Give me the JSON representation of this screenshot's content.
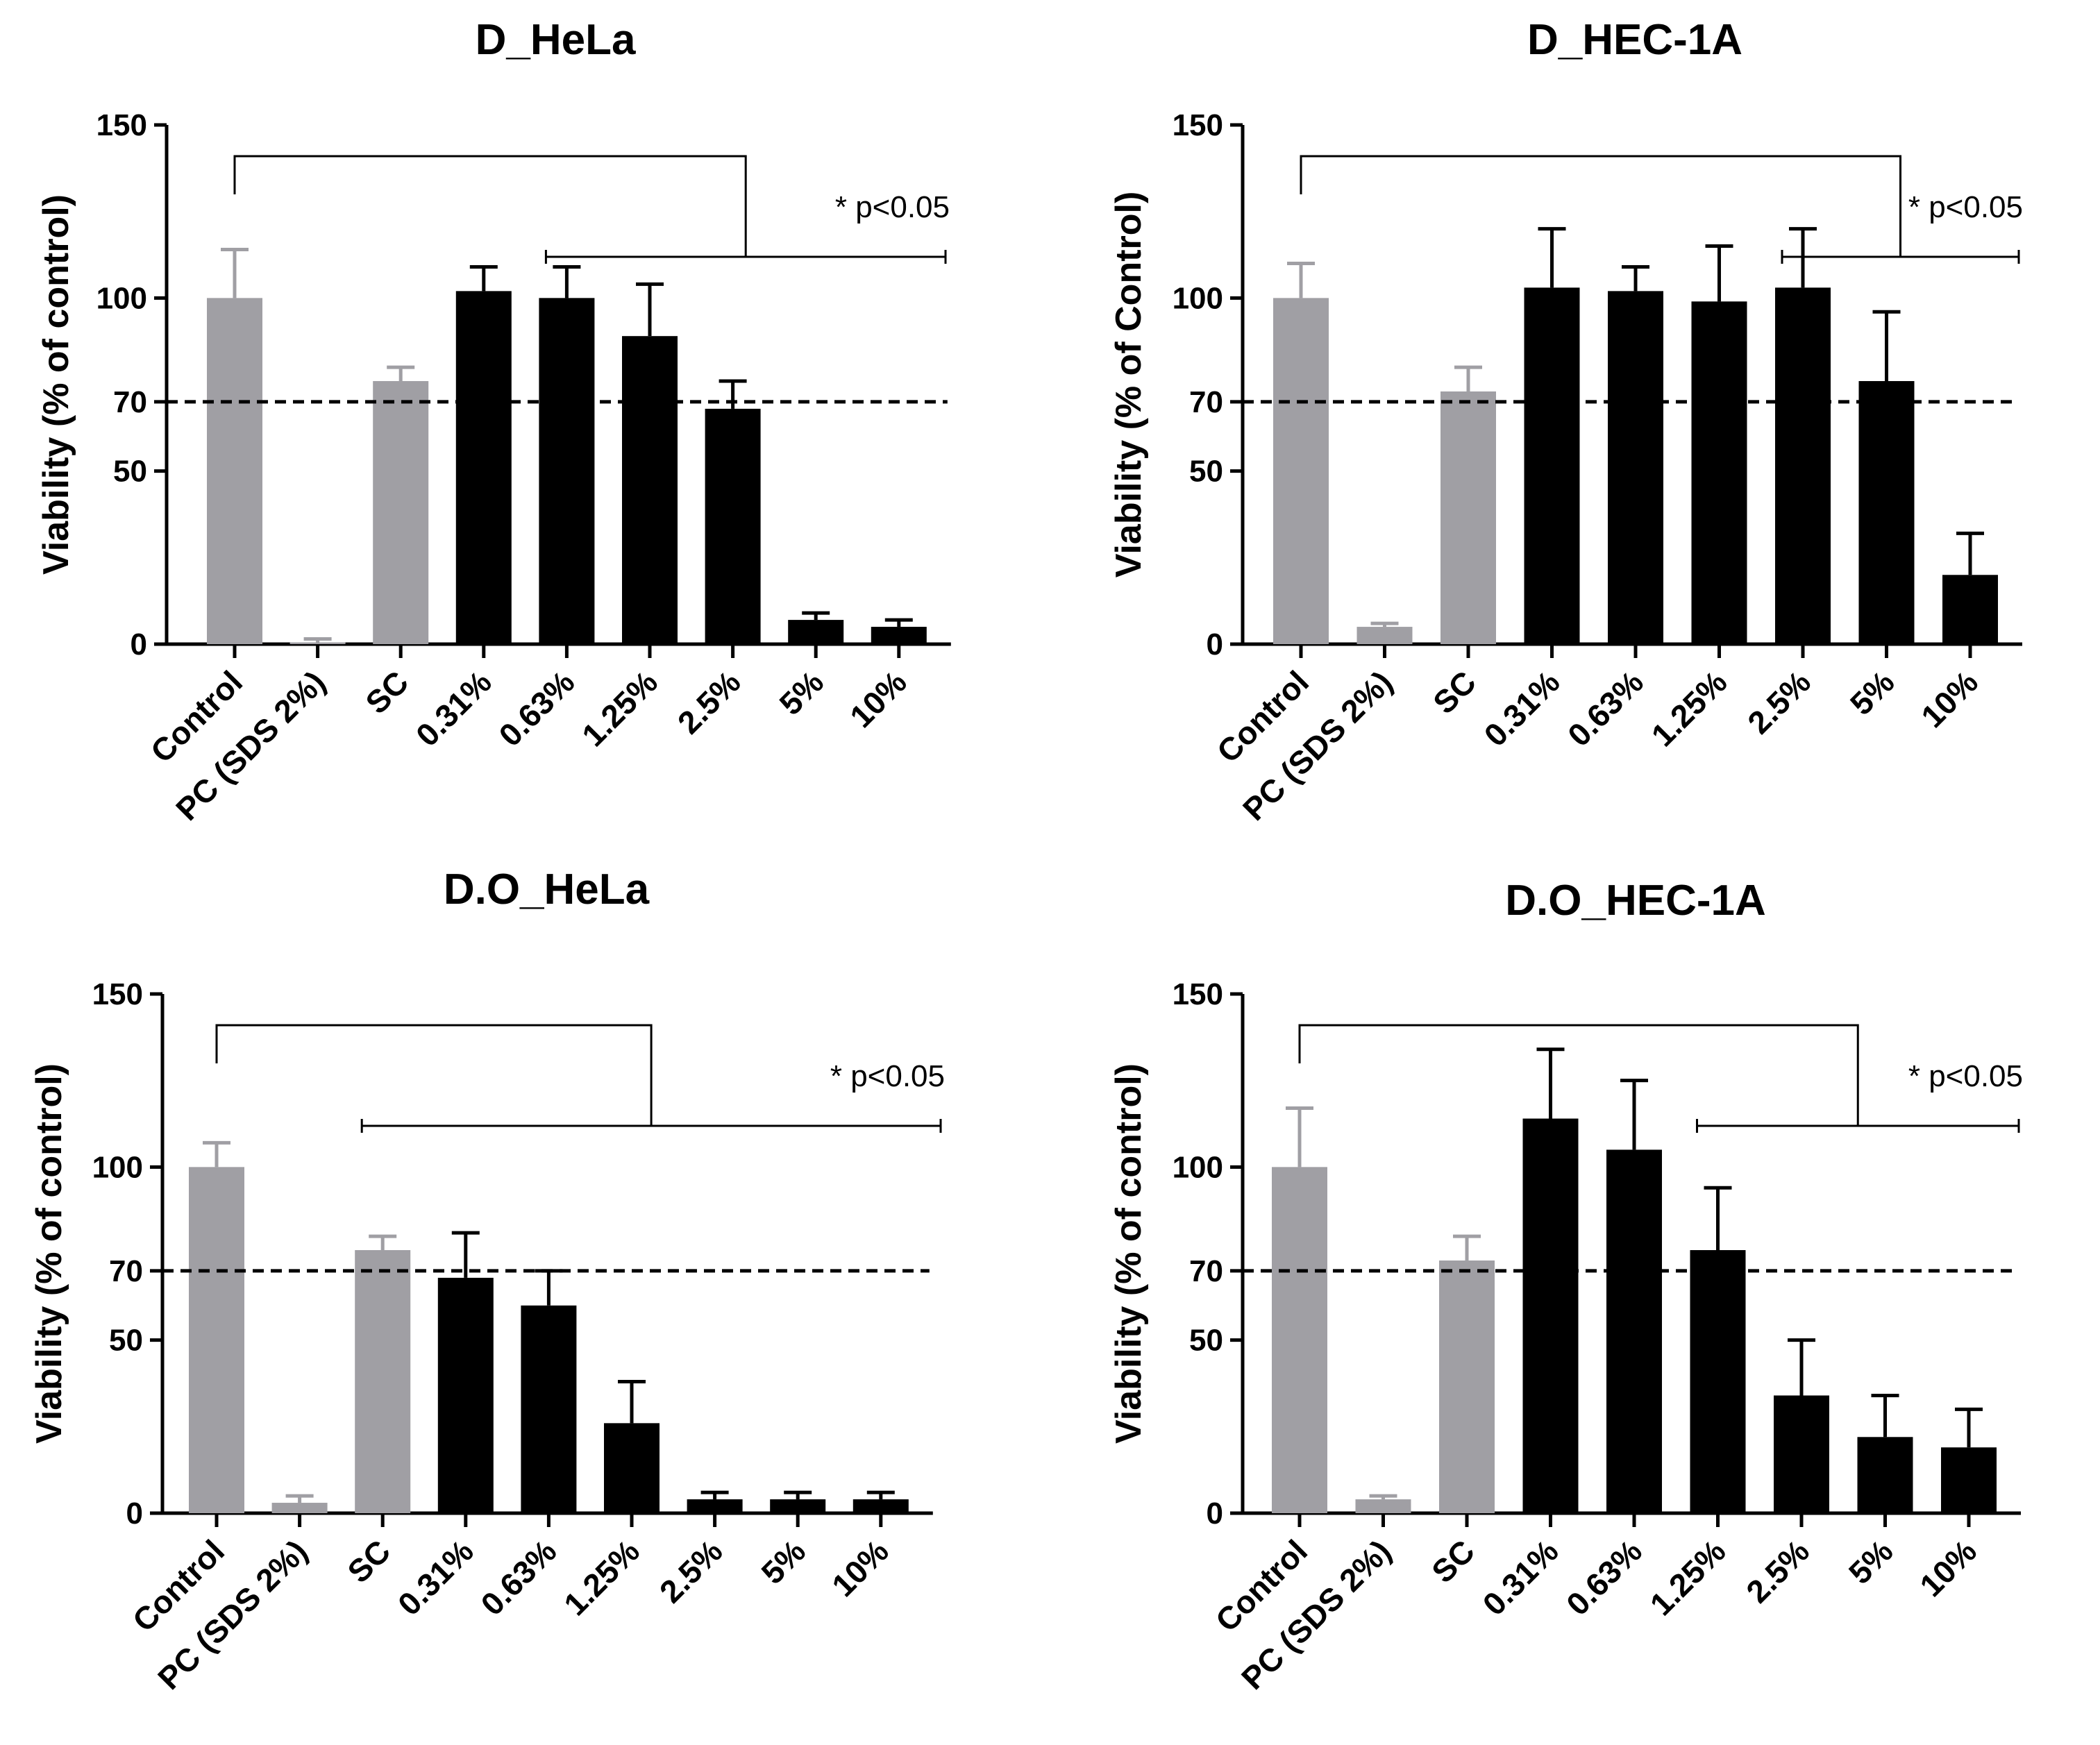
{
  "figure": {
    "bar_colors": {
      "control_group": "#a09fa4",
      "treatment_group": "#000000"
    }
  },
  "chart_data": [
    {
      "type": "bar",
      "title": "D_HeLa",
      "xlabel": "",
      "ylabel": "Viability (% of control)",
      "ylim": [
        0,
        150
      ],
      "yticks": [
        "0",
        "50",
        "70",
        "100",
        "150"
      ],
      "reference_line": 70,
      "categories": [
        "Control",
        "PC (SDS 2%)",
        "SC",
        "0.31%",
        "0.63%",
        "1.25%",
        "2.5%",
        "5%",
        "10%"
      ],
      "values": [
        100,
        0.5,
        76,
        102,
        100,
        89,
        68,
        7,
        5
      ],
      "errors": [
        14,
        1,
        4,
        7,
        9,
        15,
        8,
        2,
        2
      ],
      "groups": [
        "control",
        "control",
        "control",
        "treatment",
        "treatment",
        "treatment",
        "treatment",
        "treatment",
        "treatment"
      ],
      "significance": {
        "label": "* p<0.05",
        "from_category": "0.63%",
        "to_category": "10%"
      }
    },
    {
      "type": "bar",
      "title": "D_HEC-1A",
      "xlabel": "",
      "ylabel": "Viability (% of Control)",
      "ylim": [
        0,
        150
      ],
      "yticks": [
        "0",
        "50",
        "70",
        "100",
        "150"
      ],
      "reference_line": 70,
      "categories": [
        "Control",
        "PC (SDS 2%)",
        "SC",
        "0.31%",
        "0.63%",
        "1.25%",
        "2.5%",
        "5%",
        "10%"
      ],
      "values": [
        100,
        5,
        73,
        103,
        102,
        99,
        103,
        76,
        20
      ],
      "errors": [
        10,
        1,
        7,
        17,
        7,
        16,
        17,
        20,
        12
      ],
      "groups": [
        "control",
        "control",
        "control",
        "treatment",
        "treatment",
        "treatment",
        "treatment",
        "treatment",
        "treatment"
      ],
      "significance": {
        "label": "* p<0.05",
        "from_category": "2.5%",
        "to_category": "10%"
      }
    },
    {
      "type": "bar",
      "title": "D.O_HeLa",
      "xlabel": "",
      "ylabel": "Viability (% of control)",
      "ylim": [
        0,
        150
      ],
      "yticks": [
        "0",
        "50",
        "70",
        "100",
        "150"
      ],
      "reference_line": 70,
      "categories": [
        "Control",
        "PC (SDS 2%)",
        "SC",
        "0.31%",
        "0.63%",
        "1.25%",
        "2.5%",
        "5%",
        "10%"
      ],
      "values": [
        100,
        3,
        76,
        68,
        60,
        26,
        4,
        4,
        4
      ],
      "errors": [
        7,
        2,
        4,
        13,
        10,
        12,
        2,
        2,
        2
      ],
      "groups": [
        "control",
        "control",
        "control",
        "treatment",
        "treatment",
        "treatment",
        "treatment",
        "treatment",
        "treatment"
      ],
      "significance": {
        "label": "* p<0.05",
        "from_category": "SC",
        "to_category": "10%"
      }
    },
    {
      "type": "bar",
      "title": "D.O_HEC-1A",
      "xlabel": "",
      "ylabel": "Viability (% of control)",
      "ylim": [
        0,
        150
      ],
      "yticks": [
        "0",
        "50",
        "70",
        "100",
        "150"
      ],
      "reference_line": 70,
      "categories": [
        "Control",
        "PC (SDS 2%)",
        "SC",
        "0.31%",
        "0.63%",
        "1.25%",
        "2.5%",
        "5%",
        "10%"
      ],
      "values": [
        100,
        4,
        73,
        114,
        105,
        76,
        34,
        22,
        19
      ],
      "errors": [
        17,
        1,
        7,
        20,
        20,
        18,
        16,
        12,
        11
      ],
      "groups": [
        "control",
        "control",
        "control",
        "treatment",
        "treatment",
        "treatment",
        "treatment",
        "treatment",
        "treatment"
      ],
      "significance": {
        "label": "* p<0.05",
        "from_category": "1.25%",
        "to_category": "10%"
      }
    }
  ]
}
